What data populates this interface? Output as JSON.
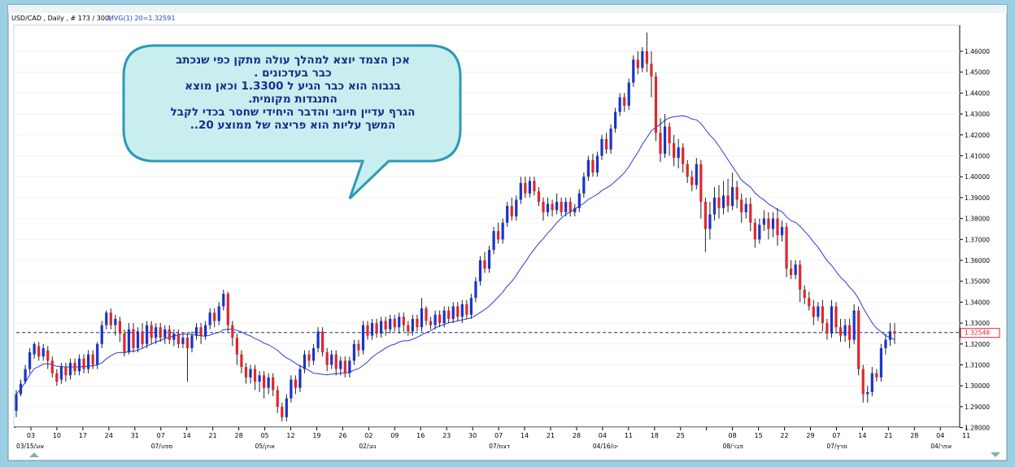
{
  "header": {
    "symbol": "USD/CAD , Daily , # 173 / 300,",
    "ma_label": "MVG(1) 20=1.32591"
  },
  "annotation": {
    "lines": [
      "אכן הצמד יוצא למהלך עולה מתקן  כפי שנכתב",
      "כבר  בעדכונים  .",
      "בגבוה הוא כבר הגיע ל 1.3300 וכאן מוצא",
      "התנגדות מקומית.",
      "הגרף עדיין חיובי והדבר היחידי שחסר בכדי לקבל",
      "המשך עליות הוא  פריצה  של ממוצע 20.."
    ]
  },
  "chart_data": {
    "type": "candlestick",
    "title": "USD/CAD , Daily",
    "ylim": [
      1.28,
      1.47
    ],
    "y_ticks": [
      "1.28000",
      "1.29000",
      "1.30000",
      "1.31000",
      "1.32000",
      "1.33000",
      "1.34000",
      "1.35000",
      "1.36000",
      "1.37000",
      "1.38000",
      "1.39000",
      "1.40000",
      "1.41000",
      "1.42000",
      "1.43000",
      "1.44000",
      "1.45000",
      "1.46000"
    ],
    "current_price": "1.32548",
    "current_price_value": 1.32548,
    "ma": {
      "name": "MVG(1) 20",
      "value": 1.32591,
      "color": "#2b3bd6"
    },
    "up_color": "#1a33c9",
    "down_color": "#e0262c",
    "x_ticks": [
      "03",
      "10",
      "17",
      "24",
      "31",
      "07",
      "14",
      "21",
      "28",
      "05",
      "12",
      "19",
      "26",
      "02",
      "09",
      "16",
      "23",
      "30",
      "07",
      "14",
      "21",
      "28",
      "04",
      "11",
      "18",
      "25",
      "",
      "08",
      "15",
      "22",
      "29",
      "07",
      "14",
      "21",
      "28",
      "04",
      "11"
    ],
    "x_months": [
      {
        "label": "03/15/אוג",
        "at": 0
      },
      {
        "label": "07/ספט",
        "at": 5
      },
      {
        "label": "05/אוק",
        "at": 9
      },
      {
        "label": "02/נוב",
        "at": 13
      },
      {
        "label": "07/דצמ",
        "at": 18
      },
      {
        "label": "04/16/ינו",
        "at": 22
      },
      {
        "label": "08/פבר",
        "at": 27
      },
      {
        "label": "07/מרץ",
        "at": 31
      },
      {
        "label": "04/אפר",
        "at": 35
      }
    ],
    "candles": [
      [
        1.288,
        1.296,
        1.285,
        1.298
      ],
      [
        1.296,
        1.301,
        1.295,
        1.303
      ],
      [
        1.302,
        1.308,
        1.301,
        1.31
      ],
      [
        1.308,
        1.316,
        1.306,
        1.318
      ],
      [
        1.315,
        1.32,
        1.313,
        1.321
      ],
      [
        1.319,
        1.314,
        1.312,
        1.321
      ],
      [
        1.314,
        1.318,
        1.312,
        1.32
      ],
      [
        1.317,
        1.312,
        1.308,
        1.319
      ],
      [
        1.312,
        1.306,
        1.304,
        1.314
      ],
      [
        1.306,
        1.302,
        1.3,
        1.308
      ],
      [
        1.303,
        1.309,
        1.301,
        1.311
      ],
      [
        1.309,
        1.305,
        1.302,
        1.311
      ],
      [
        1.305,
        1.311,
        1.303,
        1.313
      ],
      [
        1.311,
        1.307,
        1.305,
        1.313
      ],
      [
        1.307,
        1.313,
        1.305,
        1.315
      ],
      [
        1.313,
        1.308,
        1.306,
        1.315
      ],
      [
        1.308,
        1.315,
        1.306,
        1.317
      ],
      [
        1.315,
        1.31,
        1.308,
        1.317
      ],
      [
        1.31,
        1.32,
        1.308,
        1.321
      ],
      [
        1.32,
        1.329,
        1.318,
        1.331
      ],
      [
        1.329,
        1.335,
        1.327,
        1.336
      ],
      [
        1.335,
        1.329,
        1.327,
        1.337
      ],
      [
        1.329,
        1.332,
        1.324,
        1.334
      ],
      [
        1.331,
        1.325,
        1.321,
        1.333
      ],
      [
        1.325,
        1.316,
        1.314,
        1.327
      ],
      [
        1.316,
        1.327,
        1.315,
        1.33
      ],
      [
        1.327,
        1.318,
        1.316,
        1.33
      ],
      [
        1.318,
        1.326,
        1.316,
        1.328
      ],
      [
        1.326,
        1.32,
        1.318,
        1.33
      ],
      [
        1.32,
        1.329,
        1.318,
        1.331
      ],
      [
        1.329,
        1.323,
        1.32,
        1.331
      ],
      [
        1.323,
        1.328,
        1.32,
        1.33
      ],
      [
        1.328,
        1.323,
        1.321,
        1.33
      ],
      [
        1.323,
        1.327,
        1.32,
        1.329
      ],
      [
        1.327,
        1.322,
        1.32,
        1.329
      ],
      [
        1.322,
        1.325,
        1.319,
        1.327
      ],
      [
        1.325,
        1.32,
        1.318,
        1.327
      ],
      [
        1.32,
        1.323,
        1.318,
        1.325
      ],
      [
        1.323,
        1.318,
        1.302,
        1.325
      ],
      [
        1.318,
        1.324,
        1.316,
        1.326
      ],
      [
        1.324,
        1.328,
        1.322,
        1.33
      ],
      [
        1.328,
        1.324,
        1.32,
        1.33
      ],
      [
        1.324,
        1.329,
        1.322,
        1.331
      ],
      [
        1.329,
        1.335,
        1.327,
        1.337
      ],
      [
        1.335,
        1.331,
        1.328,
        1.337
      ],
      [
        1.331,
        1.338,
        1.329,
        1.34
      ],
      [
        1.338,
        1.344,
        1.336,
        1.346
      ],
      [
        1.344,
        1.329,
        1.326,
        1.345
      ],
      [
        1.329,
        1.323,
        1.319,
        1.331
      ],
      [
        1.323,
        1.315,
        1.31,
        1.325
      ],
      [
        1.315,
        1.309,
        1.306,
        1.317
      ],
      [
        1.309,
        1.304,
        1.301,
        1.311
      ],
      [
        1.304,
        1.308,
        1.301,
        1.31
      ],
      [
        1.308,
        1.302,
        1.298,
        1.31
      ],
      [
        1.302,
        1.305,
        1.297,
        1.307
      ],
      [
        1.305,
        1.299,
        1.294,
        1.307
      ],
      [
        1.299,
        1.304,
        1.296,
        1.306
      ],
      [
        1.304,
        1.298,
        1.295,
        1.306
      ],
      [
        1.298,
        1.29,
        1.287,
        1.3
      ],
      [
        1.29,
        1.285,
        1.283,
        1.292
      ],
      [
        1.285,
        1.294,
        1.283,
        1.296
      ],
      [
        1.294,
        1.303,
        1.292,
        1.305
      ],
      [
        1.303,
        1.299,
        1.296,
        1.305
      ],
      [
        1.299,
        1.308,
        1.297,
        1.31
      ],
      [
        1.308,
        1.315,
        1.306,
        1.317
      ],
      [
        1.315,
        1.312,
        1.309,
        1.317
      ],
      [
        1.312,
        1.318,
        1.31,
        1.32
      ],
      [
        1.318,
        1.326,
        1.316,
        1.328
      ],
      [
        1.326,
        1.316,
        1.314,
        1.328
      ],
      [
        1.316,
        1.31,
        1.307,
        1.318
      ],
      [
        1.31,
        1.315,
        1.308,
        1.317
      ],
      [
        1.315,
        1.308,
        1.305,
        1.317
      ],
      [
        1.308,
        1.312,
        1.305,
        1.314
      ],
      [
        1.312,
        1.306,
        1.304,
        1.314
      ],
      [
        1.306,
        1.312,
        1.304,
        1.314
      ],
      [
        1.312,
        1.32,
        1.31,
        1.322
      ],
      [
        1.32,
        1.317,
        1.314,
        1.322
      ],
      [
        1.317,
        1.329,
        1.315,
        1.331
      ],
      [
        1.329,
        1.324,
        1.322,
        1.331
      ],
      [
        1.324,
        1.33,
        1.322,
        1.332
      ],
      [
        1.33,
        1.325,
        1.323,
        1.332
      ],
      [
        1.325,
        1.331,
        1.323,
        1.333
      ],
      [
        1.331,
        1.327,
        1.324,
        1.333
      ],
      [
        1.327,
        1.332,
        1.325,
        1.334
      ],
      [
        1.332,
        1.328,
        1.326,
        1.334
      ],
      [
        1.328,
        1.333,
        1.325,
        1.335
      ],
      [
        1.333,
        1.329,
        1.326,
        1.335
      ],
      [
        1.329,
        1.326,
        1.324,
        1.331
      ],
      [
        1.326,
        1.332,
        1.324,
        1.334
      ],
      [
        1.332,
        1.328,
        1.326,
        1.334
      ],
      [
        1.328,
        1.337,
        1.326,
        1.342
      ],
      [
        1.337,
        1.331,
        1.329,
        1.338
      ],
      [
        1.331,
        1.329,
        1.327,
        1.333
      ],
      [
        1.329,
        1.334,
        1.327,
        1.336
      ],
      [
        1.334,
        1.33,
        1.328,
        1.336
      ],
      [
        1.33,
        1.336,
        1.328,
        1.338
      ],
      [
        1.336,
        1.332,
        1.33,
        1.338
      ],
      [
        1.332,
        1.338,
        1.33,
        1.34
      ],
      [
        1.338,
        1.333,
        1.331,
        1.34
      ],
      [
        1.333,
        1.339,
        1.33,
        1.341
      ],
      [
        1.339,
        1.334,
        1.332,
        1.341
      ],
      [
        1.334,
        1.342,
        1.332,
        1.344
      ],
      [
        1.342,
        1.35,
        1.34,
        1.352
      ],
      [
        1.35,
        1.36,
        1.348,
        1.362
      ],
      [
        1.36,
        1.356,
        1.354,
        1.364
      ],
      [
        1.356,
        1.365,
        1.354,
        1.367
      ],
      [
        1.365,
        1.374,
        1.363,
        1.376
      ],
      [
        1.374,
        1.37,
        1.368,
        1.378
      ],
      [
        1.37,
        1.378,
        1.368,
        1.38
      ],
      [
        1.378,
        1.386,
        1.376,
        1.388
      ],
      [
        1.386,
        1.381,
        1.379,
        1.39
      ],
      [
        1.381,
        1.389,
        1.379,
        1.391
      ],
      [
        1.389,
        1.397,
        1.387,
        1.4
      ],
      [
        1.397,
        1.392,
        1.39,
        1.4
      ],
      [
        1.392,
        1.398,
        1.39,
        1.4
      ],
      [
        1.398,
        1.393,
        1.391,
        1.4
      ],
      [
        1.393,
        1.388,
        1.386,
        1.395
      ],
      [
        1.388,
        1.383,
        1.379,
        1.39
      ],
      [
        1.383,
        1.387,
        1.381,
        1.39
      ],
      [
        1.387,
        1.384,
        1.381,
        1.389
      ],
      [
        1.384,
        1.388,
        1.382,
        1.392
      ],
      [
        1.388,
        1.383,
        1.381,
        1.39
      ],
      [
        1.383,
        1.388,
        1.381,
        1.39
      ],
      [
        1.388,
        1.383,
        1.381,
        1.39
      ],
      [
        1.383,
        1.385,
        1.381,
        1.387
      ],
      [
        1.385,
        1.392,
        1.383,
        1.394
      ],
      [
        1.392,
        1.4,
        1.39,
        1.402
      ],
      [
        1.4,
        1.408,
        1.398,
        1.41
      ],
      [
        1.408,
        1.402,
        1.4,
        1.411
      ],
      [
        1.402,
        1.41,
        1.4,
        1.412
      ],
      [
        1.41,
        1.418,
        1.408,
        1.42
      ],
      [
        1.418,
        1.413,
        1.411,
        1.421
      ],
      [
        1.413,
        1.423,
        1.411,
        1.425
      ],
      [
        1.423,
        1.431,
        1.421,
        1.433
      ],
      [
        1.431,
        1.438,
        1.429,
        1.44
      ],
      [
        1.438,
        1.434,
        1.431,
        1.44
      ],
      [
        1.434,
        1.445,
        1.432,
        1.447
      ],
      [
        1.445,
        1.456,
        1.443,
        1.458
      ],
      [
        1.456,
        1.452,
        1.449,
        1.46
      ],
      [
        1.452,
        1.46,
        1.45,
        1.462
      ],
      [
        1.46,
        1.454,
        1.45,
        1.469
      ],
      [
        1.454,
        1.448,
        1.438,
        1.46
      ],
      [
        1.448,
        1.421,
        1.417,
        1.45
      ],
      [
        1.421,
        1.411,
        1.407,
        1.428
      ],
      [
        1.411,
        1.424,
        1.409,
        1.43
      ],
      [
        1.424,
        1.416,
        1.41,
        1.426
      ],
      [
        1.416,
        1.409,
        1.405,
        1.42
      ],
      [
        1.409,
        1.414,
        1.404,
        1.418
      ],
      [
        1.414,
        1.406,
        1.402,
        1.416
      ],
      [
        1.406,
        1.4,
        1.397,
        1.408
      ],
      [
        1.4,
        1.396,
        1.393,
        1.403
      ],
      [
        1.396,
        1.406,
        1.394,
        1.409
      ],
      [
        1.406,
        1.388,
        1.38,
        1.408
      ],
      [
        1.388,
        1.375,
        1.364,
        1.39
      ],
      [
        1.375,
        1.382,
        1.37,
        1.388
      ],
      [
        1.382,
        1.39,
        1.379,
        1.395
      ],
      [
        1.39,
        1.385,
        1.38,
        1.396
      ],
      [
        1.385,
        1.391,
        1.382,
        1.398
      ],
      [
        1.391,
        1.386,
        1.383,
        1.399
      ],
      [
        1.386,
        1.395,
        1.384,
        1.402
      ],
      [
        1.395,
        1.389,
        1.385,
        1.398
      ],
      [
        1.389,
        1.383,
        1.378,
        1.392
      ],
      [
        1.383,
        1.387,
        1.38,
        1.39
      ],
      [
        1.387,
        1.378,
        1.374,
        1.39
      ],
      [
        1.378,
        1.37,
        1.366,
        1.38
      ],
      [
        1.37,
        1.377,
        1.368,
        1.38
      ],
      [
        1.377,
        1.38,
        1.374,
        1.384
      ],
      [
        1.38,
        1.375,
        1.37,
        1.383
      ],
      [
        1.375,
        1.38,
        1.371,
        1.383
      ],
      [
        1.38,
        1.372,
        1.367,
        1.385
      ],
      [
        1.372,
        1.376,
        1.369,
        1.379
      ],
      [
        1.376,
        1.356,
        1.352,
        1.378
      ],
      [
        1.356,
        1.353,
        1.351,
        1.36
      ],
      [
        1.353,
        1.358,
        1.351,
        1.36
      ],
      [
        1.358,
        1.346,
        1.34,
        1.36
      ],
      [
        1.346,
        1.342,
        1.339,
        1.348
      ],
      [
        1.342,
        1.338,
        1.336,
        1.345
      ],
      [
        1.338,
        1.333,
        1.329,
        1.341
      ],
      [
        1.333,
        1.338,
        1.331,
        1.34
      ],
      [
        1.338,
        1.33,
        1.326,
        1.341
      ],
      [
        1.33,
        1.325,
        1.322,
        1.332
      ],
      [
        1.325,
        1.338,
        1.323,
        1.341
      ],
      [
        1.338,
        1.328,
        1.325,
        1.34
      ],
      [
        1.328,
        1.324,
        1.321,
        1.332
      ],
      [
        1.324,
        1.329,
        1.321,
        1.332
      ],
      [
        1.329,
        1.322,
        1.318,
        1.332
      ],
      [
        1.322,
        1.336,
        1.32,
        1.339
      ],
      [
        1.336,
        1.308,
        1.305,
        1.338
      ],
      [
        1.308,
        1.296,
        1.292,
        1.31
      ],
      [
        1.296,
        1.297,
        1.292,
        1.3
      ],
      [
        1.297,
        1.306,
        1.295,
        1.309
      ],
      [
        1.306,
        1.304,
        1.302,
        1.308
      ],
      [
        1.304,
        1.318,
        1.302,
        1.32
      ],
      [
        1.318,
        1.322,
        1.315,
        1.325
      ],
      [
        1.322,
        1.326,
        1.319,
        1.33
      ],
      [
        1.326,
        1.325,
        1.32,
        1.33
      ]
    ]
  }
}
